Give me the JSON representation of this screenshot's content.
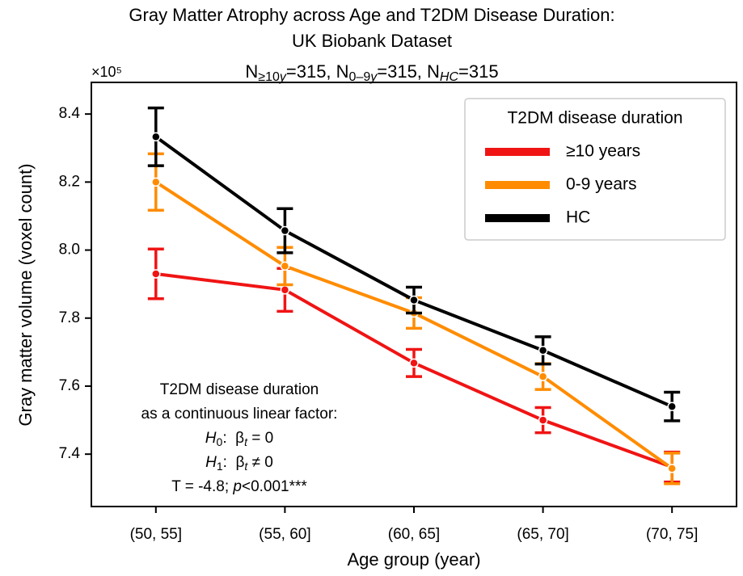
{
  "chart_data": {
    "type": "line",
    "title": [
      "Gray Matter Atrophy across Age and T2DM Disease Duration:",
      "UK Biobank Dataset"
    ],
    "subtitle": [
      {
        "text": "N",
        "style": "normal"
      },
      {
        "text": "≥10",
        "style": "sub"
      },
      {
        "text": "y",
        "style": "sub-italic"
      },
      {
        "text": "=315, N",
        "style": "normal"
      },
      {
        "text": "0–9",
        "style": "sub"
      },
      {
        "text": "y",
        "style": "sub-italic"
      },
      {
        "text": "=315, N",
        "style": "normal"
      },
      {
        "text": "HC",
        "style": "sub-italic"
      },
      {
        "text": "=315",
        "style": "normal"
      }
    ],
    "x_label": "Age group (year)",
    "y_label": "Gray matter volume (voxel count)",
    "y_multiplier": "×10⁵",
    "categories": [
      "(50, 55]",
      "(55, 60]",
      "(60, 65]",
      "(65, 70]",
      "(70, 75]"
    ],
    "series": [
      {
        "name": "≥10 years",
        "color": "#f01414",
        "values": [
          7.93,
          7.883,
          7.668,
          7.5,
          7.362
        ],
        "errors": [
          0.073,
          0.063,
          0.04,
          0.037,
          0.044
        ]
      },
      {
        "name": "0-9 years",
        "color": "#ff8c00",
        "values": [
          8.2,
          7.953,
          7.815,
          7.628,
          7.358
        ],
        "errors": [
          0.083,
          0.055,
          0.045,
          0.038,
          0.045
        ]
      },
      {
        "name": "HC",
        "color": "#000000",
        "values": [
          8.333,
          8.057,
          7.853,
          7.705,
          7.54
        ],
        "errors": [
          0.085,
          0.065,
          0.038,
          0.04,
          0.042
        ]
      }
    ],
    "ylim": [
      7.246,
      8.493
    ],
    "yticks": [
      7.4,
      7.6,
      7.8,
      {
        "value": 8,
        "label": "8.0"
      },
      8.2,
      8.4
    ],
    "legend": {
      "title": "T2DM disease duration",
      "location": "upper right"
    },
    "annotation": [
      [
        {
          "text": "T2DM disease duration",
          "style": "normal"
        }
      ],
      [
        {
          "text": "as a continuous linear factor:",
          "style": "normal"
        }
      ],
      [
        {
          "text": "H",
          "style": "italic"
        },
        {
          "text": "0",
          "style": "sub"
        },
        {
          "text": ":  β",
          "style": "normal"
        },
        {
          "text": "t",
          "style": "sub-italic"
        },
        {
          "text": " = 0",
          "style": "normal"
        }
      ],
      [
        {
          "text": "H",
          "style": "italic"
        },
        {
          "text": "1",
          "style": "sub"
        },
        {
          "text": ":  β",
          "style": "normal"
        },
        {
          "text": "t",
          "style": "sub-italic"
        },
        {
          "text": " ≠ 0",
          "style": "normal"
        }
      ],
      [
        {
          "text": "T = -4.8; ",
          "style": "normal"
        },
        {
          "text": "p",
          "style": "italic"
        },
        {
          "text": "<0.001***",
          "style": "normal"
        }
      ]
    ]
  }
}
